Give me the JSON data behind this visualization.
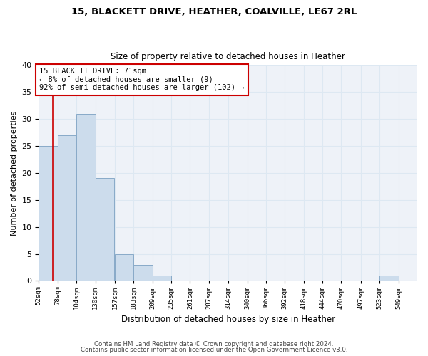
{
  "title1": "15, BLACKETT DRIVE, HEATHER, COALVILLE, LE67 2RL",
  "title2": "Size of property relative to detached houses in Heather",
  "xlabel": "Distribution of detached houses by size in Heather",
  "ylabel": "Number of detached properties",
  "bin_edges": [
    52,
    78,
    104,
    130,
    157,
    183,
    209,
    235,
    261,
    287,
    314,
    340,
    366,
    392,
    418,
    444,
    470,
    497,
    523,
    549,
    575
  ],
  "bar_values": [
    25,
    27,
    31,
    19,
    5,
    3,
    1,
    0,
    0,
    0,
    0,
    0,
    0,
    0,
    0,
    0,
    0,
    0,
    1,
    0
  ],
  "bar_color": "#ccdcec",
  "bar_edge_color": "#88aac8",
  "grid_color": "#dde8f2",
  "bg_color": "#eef2f8",
  "red_line_x": 71,
  "annotation_text": "15 BLACKETT DRIVE: 71sqm\n← 8% of detached houses are smaller (9)\n92% of semi-detached houses are larger (102) →",
  "annotation_box_color": "#ffffff",
  "annotation_box_edge": "#cc0000",
  "footer1": "Contains HM Land Registry data © Crown copyright and database right 2024.",
  "footer2": "Contains public sector information licensed under the Open Government Licence v3.0.",
  "ylim": [
    0,
    40
  ],
  "yticks": [
    0,
    5,
    10,
    15,
    20,
    25,
    30,
    35,
    40
  ],
  "figsize": [
    6.0,
    5.0
  ],
  "dpi": 100
}
